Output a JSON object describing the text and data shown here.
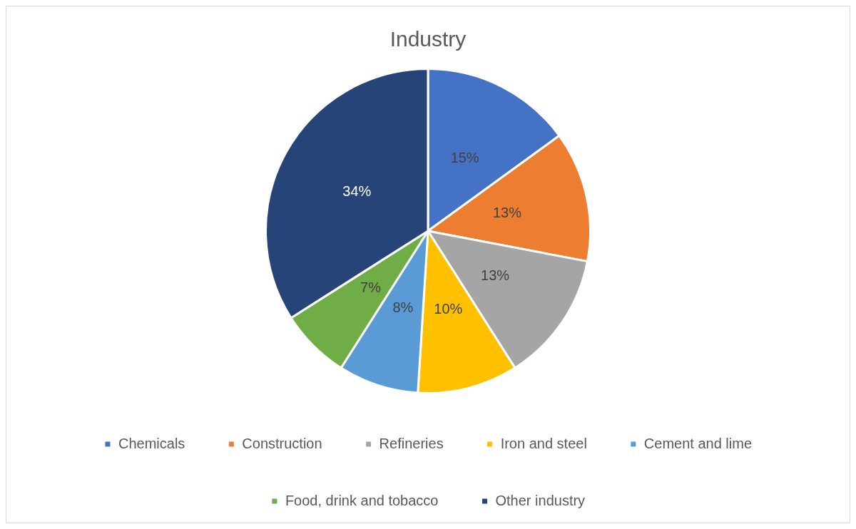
{
  "chart_data": {
    "type": "pie",
    "title": "Industry",
    "categories": [
      "Chemicals",
      "Construction",
      "Refineries",
      "Iron and steel",
      "Cement and lime",
      "Food, drink and tobacco",
      "Other industry"
    ],
    "values": [
      15,
      13,
      13,
      10,
      8,
      7,
      34
    ],
    "colors": [
      "#4472c4",
      "#ed7d31",
      "#a5a5a5",
      "#ffc000",
      "#5b9bd5",
      "#70ad47",
      "#264478"
    ],
    "value_labels": [
      "15%",
      "13%",
      "13%",
      "10%",
      "8%",
      "7%",
      "34%"
    ],
    "legend": "bottom"
  }
}
